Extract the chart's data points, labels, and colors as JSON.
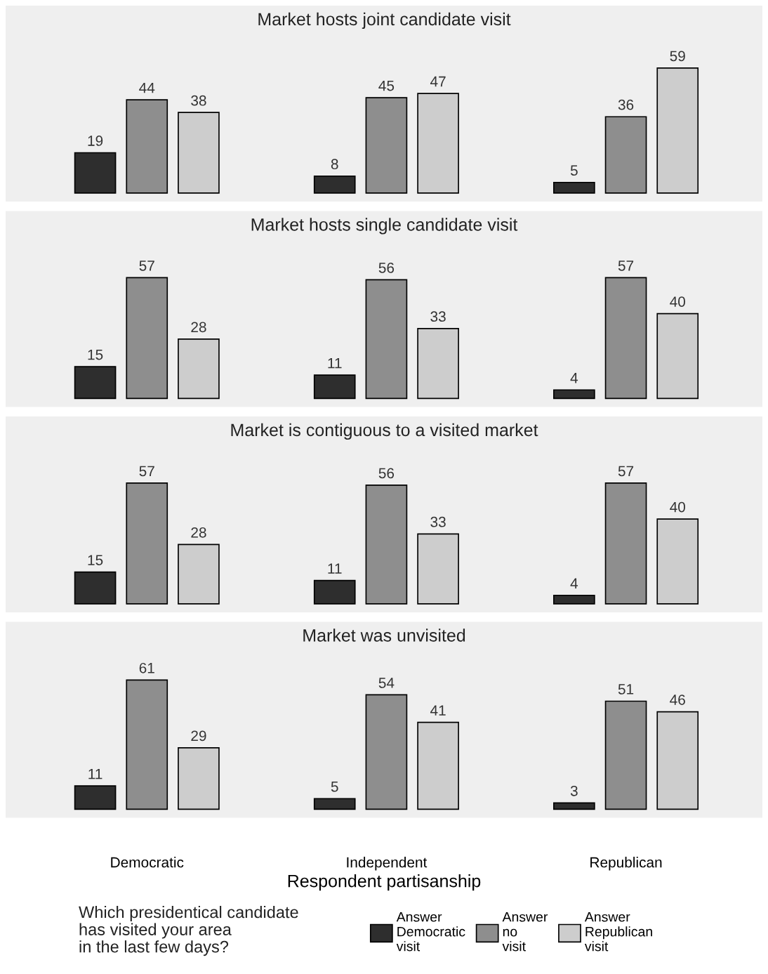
{
  "chart_data": [
    {
      "type": "bar",
      "title": "Market hosts joint candidate visit",
      "categories": [
        null,
        null,
        null
      ],
      "tick_labels": false,
      "data_labels": true,
      "grid": false,
      "series": [
        {
          "color": "#2e2e2e",
          "values": [
            19,
            8,
            5
          ]
        },
        {
          "color": "#8e8e8e",
          "values": [
            44,
            45,
            36
          ]
        },
        {
          "color": "#cdcdcd",
          "values": [
            38,
            47,
            59
          ]
        }
      ]
    },
    {
      "type": "bar",
      "title": "Market hosts single candidate visit",
      "categories": [
        null,
        null,
        null
      ],
      "tick_labels": false,
      "data_labels": true,
      "grid": false,
      "series": [
        {
          "color": "#2e2e2e",
          "values": [
            15,
            11,
            4
          ]
        },
        {
          "color": "#8e8e8e",
          "values": [
            57,
            56,
            57
          ]
        },
        {
          "color": "#cdcdcd",
          "values": [
            28,
            33,
            40
          ]
        }
      ]
    },
    {
      "type": "bar",
      "title": "Market is contiguous to a visited market",
      "categories": [
        null,
        null,
        null
      ],
      "tick_labels": false,
      "data_labels": true,
      "grid": false,
      "series": [
        {
          "color": "#2e2e2e",
          "values": [
            15,
            11,
            4
          ]
        },
        {
          "color": "#8e8e8e",
          "values": [
            57,
            56,
            57
          ]
        },
        {
          "color": "#cdcdcd",
          "values": [
            28,
            33,
            40
          ]
        }
      ]
    },
    {
      "type": "bar",
      "title": "Market was unvisited",
      "categories": [
        "Democratic",
        "Independent",
        "Republican"
      ],
      "tick_labels": "x",
      "data_labels": true,
      "grid": false,
      "legend": "bottom",
      "xlabel": "Respondent partisanship",
      "legend_title": "Which presidentical candidate\nhas visited your area\nin the last few days?",
      "series": [
        {
          "name": "Answer\nDemocratic\nvisit",
          "color": "#2e2e2e",
          "values": [
            11,
            5,
            3
          ]
        },
        {
          "name": "Answer\nno\nvisit",
          "color": "#8e8e8e",
          "values": [
            61,
            54,
            51
          ]
        },
        {
          "name": "Answer\nRepublican\nvisit",
          "color": "#cdcdcd",
          "values": [
            29,
            41,
            46
          ]
        }
      ]
    }
  ]
}
